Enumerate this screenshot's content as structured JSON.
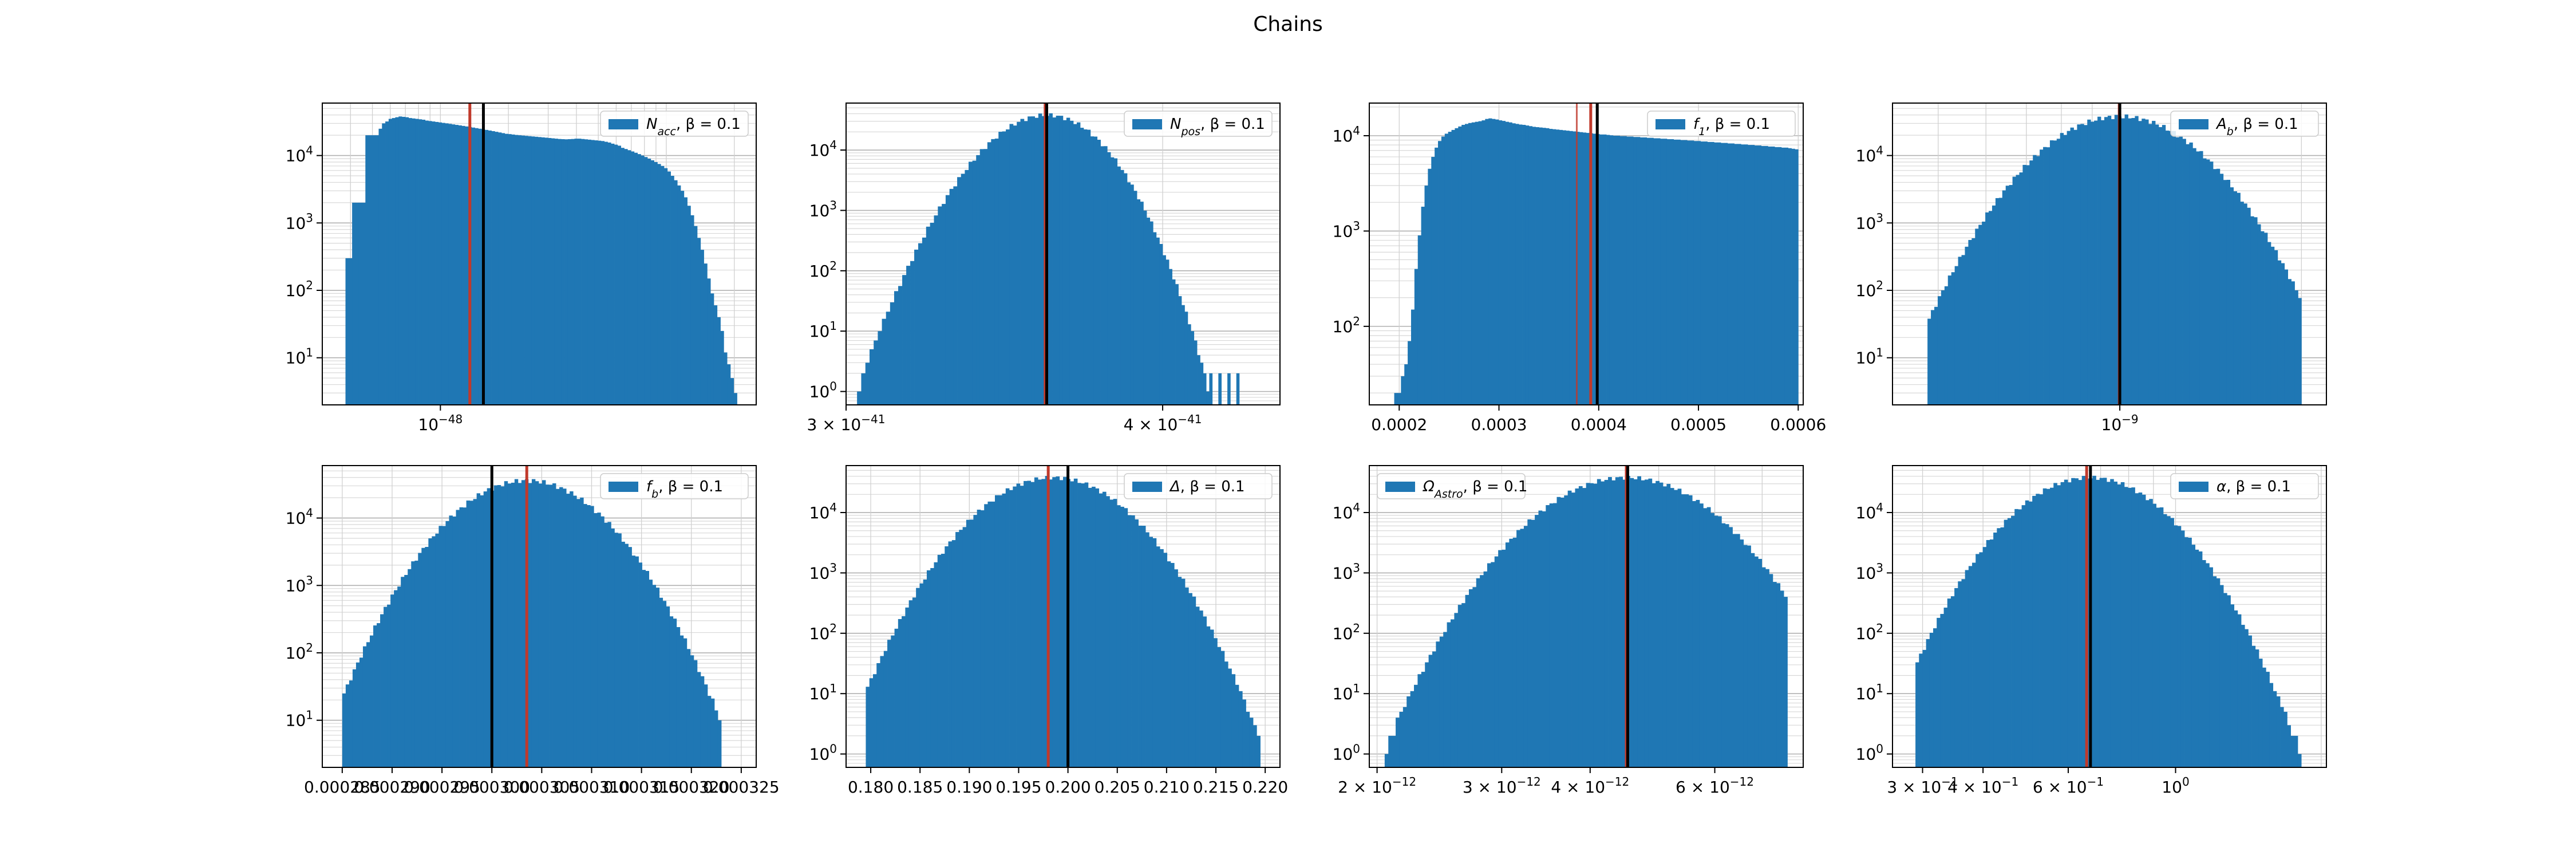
{
  "figure": {
    "title": "Chains",
    "bar_color": "#1f77b4",
    "true_line_color": "#000000",
    "est_line_color": "#c0392b"
  },
  "chart_data": [
    {
      "type": "bar",
      "xscale": "log",
      "yscale": "log",
      "grid": true,
      "legend": "upper right",
      "legend_label": "N_acc, β = 0.1",
      "legend_main": "N",
      "legend_sub": "acc",
      "legend_tail": ", β = 0.1",
      "xlim": [
        3e-49,
        2.5e-47
      ],
      "ylim": [
        2,
        60000
      ],
      "xticks": [
        {
          "value": 1e-48,
          "base": "10",
          "exp": "−48"
        }
      ],
      "yticks": [
        {
          "value": 10,
          "exp": "1"
        },
        {
          "value": 100,
          "exp": "2"
        },
        {
          "value": 1000,
          "exp": "3"
        },
        {
          "value": 10000,
          "exp": "4"
        }
      ],
      "bins": {
        "start": 3.8e-49,
        "end": 2.2e-47,
        "count": 120
      },
      "counts": [
        300,
        300,
        2000,
        2000,
        2000,
        2000,
        20000,
        20000,
        20000,
        20000,
        25000,
        30000,
        32000,
        35000,
        36000,
        37000,
        38000,
        37500,
        37000,
        36000,
        35500,
        35000,
        34500,
        34000,
        33000,
        32500,
        32000,
        31500,
        31000,
        30500,
        30000,
        29500,
        29000,
        28500,
        28000,
        27500,
        27000,
        26500,
        26000,
        25500,
        25000,
        24500,
        24000,
        23500,
        23000,
        22500,
        22000,
        21500,
        21000,
        20800,
        20500,
        20200,
        20000,
        19800,
        19600,
        19400,
        19200,
        19000,
        18800,
        18600,
        18400,
        18200,
        18000,
        17800,
        17600,
        17500,
        17400,
        17500,
        17600,
        17800,
        17800,
        17600,
        17400,
        17200,
        17000,
        16800,
        16600,
        16400,
        16000,
        15600,
        15000,
        14500,
        14000,
        13000,
        12500,
        12000,
        11500,
        11000,
        10500,
        10000,
        9500,
        9000,
        8500,
        8000,
        7500,
        7000,
        6500,
        5800,
        5000,
        4300,
        3600,
        3000,
        2400,
        1800,
        1300,
        900,
        600,
        400,
        250,
        150,
        90,
        60,
        40,
        25,
        12,
        8,
        5,
        3,
        2,
        2
      ],
      "lines": {
        "estimate": 1.35e-48,
        "true": 1.55e-48
      }
    },
    {
      "type": "bar",
      "xscale": "log",
      "yscale": "log",
      "grid": true,
      "legend": "upper right",
      "legend_label": "N_pos, β = 0.1",
      "legend_main": "N",
      "legend_sub": "pos",
      "legend_tail": ", β = 0.1",
      "xlim": [
        3e-41,
        4.45e-41
      ],
      "ylim": [
        0.6,
        60000
      ],
      "xticks": [
        {
          "value": 3e-41,
          "base": "3 × 10",
          "exp": "−41"
        },
        {
          "value": 4e-41,
          "base": "4 × 10",
          "exp": "−41"
        }
      ],
      "yticks": [
        {
          "value": 1,
          "exp": "0"
        },
        {
          "value": 10,
          "exp": "1"
        },
        {
          "value": 100,
          "exp": "2"
        },
        {
          "value": 1000,
          "exp": "3"
        },
        {
          "value": 10000,
          "exp": "4"
        }
      ],
      "gauss": {
        "center": 3.6e-41,
        "sigma": 1.25e-42,
        "peak": 38000,
        "lo": 3.03e-41,
        "hi": 4.3e-41,
        "count": 110
      },
      "lines": {
        "estimate": 3.595e-41,
        "true": 3.6e-41
      }
    },
    {
      "type": "bar",
      "xscale": "linear",
      "yscale": "log",
      "grid": true,
      "legend": "upper right",
      "legend_label": "f_1, β = 0.1",
      "legend_main": "f",
      "legend_sub": "1",
      "legend_tail": ", β = 0.1",
      "xlim": [
        0.00017,
        0.000605
      ],
      "ylim": [
        15,
        22000
      ],
      "xticks": [
        {
          "value": 0.0002,
          "text": "0.0002"
        },
        {
          "value": 0.0003,
          "text": "0.0003"
        },
        {
          "value": 0.0004,
          "text": "0.0004"
        },
        {
          "value": 0.0005,
          "text": "0.0005"
        },
        {
          "value": 0.0006,
          "text": "0.0006"
        }
      ],
      "yticks": [
        {
          "value": 100,
          "exp": "2"
        },
        {
          "value": 1000,
          "exp": "3"
        },
        {
          "value": 10000,
          "exp": "4"
        }
      ],
      "bins": {
        "start": 0.000195,
        "end": 0.0006,
        "count": 120
      },
      "counts": [
        20,
        20,
        30,
        40,
        70,
        150,
        400,
        900,
        1800,
        3000,
        4500,
        6000,
        7500,
        8800,
        9800,
        10500,
        11000,
        11500,
        12000,
        12500,
        13000,
        13300,
        13600,
        13800,
        14000,
        14200,
        14500,
        15000,
        15200,
        15000,
        14800,
        14500,
        14300,
        14000,
        13800,
        13500,
        13300,
        13100,
        13000,
        12800,
        12600,
        12400,
        12300,
        12200,
        12100,
        12000,
        11800,
        11700,
        11600,
        11500,
        11400,
        11300,
        11200,
        11100,
        11000,
        10900,
        10800,
        10700,
        10600,
        10500,
        10400,
        10300,
        10300,
        10200,
        10100,
        10000,
        10000,
        9900,
        9900,
        9800,
        9800,
        9700,
        9700,
        9600,
        9600,
        9500,
        9500,
        9400,
        9400,
        9300,
        9300,
        9200,
        9200,
        9100,
        9100,
        9000,
        9000,
        8900,
        8900,
        8800,
        8800,
        8700,
        8700,
        8600,
        8600,
        8500,
        8500,
        8400,
        8400,
        8300,
        8300,
        8200,
        8200,
        8100,
        8100,
        8000,
        8000,
        7900,
        7900,
        7800,
        7800,
        7700,
        7700,
        7600,
        7600,
        7500,
        7500,
        7400,
        7300,
        7200
      ],
      "lines": {
        "estimate": 0.000392,
        "true": 0.0003985,
        "estimate2": 0.000378
      }
    },
    {
      "type": "bar",
      "xscale": "log",
      "yscale": "log",
      "grid": true,
      "legend": "upper right",
      "legend_label": "A_b, β = 0.1",
      "legend_main": "A",
      "legend_sub": "b",
      "legend_tail": ", β = 0.1",
      "xlim": [
        4.2e-10,
        2.2e-09
      ],
      "ylim": [
        2,
        60000
      ],
      "xticks": [
        {
          "value": 1e-09,
          "base": "10",
          "exp": "−9"
        }
      ],
      "yticks": [
        {
          "value": 10,
          "exp": "1"
        },
        {
          "value": 100,
          "exp": "2"
        },
        {
          "value": 1000,
          "exp": "3"
        },
        {
          "value": 10000,
          "exp": "4"
        }
      ],
      "gauss": {
        "center": 1e-09,
        "sigma": 0.085,
        "log_sigma": true,
        "peak": 38000,
        "lo": 4.8e-10,
        "hi": 2e-09,
        "count": 110
      },
      "lines": {
        "estimate": 9.98e-10,
        "true": 1e-09
      }
    },
    {
      "type": "bar",
      "xscale": "linear",
      "yscale": "log",
      "grid": true,
      "legend": "upper right",
      "legend_label": "f_b, β = 0.1",
      "legend_main": "f",
      "legend_sub": "b",
      "legend_tail": ", β = 0.1",
      "xlim": [
        0.000283,
        0.0003265
      ],
      "ylim": [
        2,
        60000
      ],
      "xticks": [
        {
          "value": 0.000285,
          "text": "0.000285"
        },
        {
          "value": 0.00029,
          "text": "0.000290"
        },
        {
          "value": 0.000295,
          "text": "0.000295"
        },
        {
          "value": 0.0003,
          "text": "0.000300"
        },
        {
          "value": 0.000305,
          "text": "0.000305"
        },
        {
          "value": 0.00031,
          "text": "0.000310"
        },
        {
          "value": 0.000315,
          "text": "0.000315"
        },
        {
          "value": 0.00032,
          "text": "0.000320"
        },
        {
          "value": 0.000325,
          "text": "0.000325"
        }
      ],
      "yticks": [
        {
          "value": 10,
          "exp": "1"
        },
        {
          "value": 100,
          "exp": "2"
        },
        {
          "value": 1000,
          "exp": "3"
        },
        {
          "value": 10000,
          "exp": "4"
        }
      ],
      "gauss": {
        "center": 0.0003035,
        "sigma": 4.8e-06,
        "peak": 36000,
        "lo": 0.000285,
        "hi": 0.000323,
        "count": 110
      },
      "lines": {
        "true": 0.0003,
        "estimate": 0.0003035
      }
    },
    {
      "type": "bar",
      "xscale": "linear",
      "yscale": "log",
      "grid": true,
      "legend": "upper right",
      "legend_label": "Δ, β = 0.1",
      "legend_main": "Δ",
      "legend_sub": "",
      "legend_tail": ", β = 0.1",
      "xlim": [
        0.1775,
        0.2215
      ],
      "ylim": [
        0.6,
        60000
      ],
      "xticks": [
        {
          "value": 0.18,
          "text": "0.180"
        },
        {
          "value": 0.185,
          "text": "0.185"
        },
        {
          "value": 0.19,
          "text": "0.190"
        },
        {
          "value": 0.195,
          "text": "0.195"
        },
        {
          "value": 0.2,
          "text": "0.200"
        },
        {
          "value": 0.205,
          "text": "0.205"
        },
        {
          "value": 0.21,
          "text": "0.210"
        },
        {
          "value": 0.215,
          "text": "0.215"
        },
        {
          "value": 0.22,
          "text": "0.220"
        }
      ],
      "yticks": [
        {
          "value": 1,
          "exp": "0"
        },
        {
          "value": 10,
          "exp": "1"
        },
        {
          "value": 100,
          "exp": "2"
        },
        {
          "value": 1000,
          "exp": "3"
        },
        {
          "value": 10000,
          "exp": "4"
        }
      ],
      "gauss": {
        "center": 0.1985,
        "sigma": 0.0047,
        "peak": 38000,
        "lo": 0.1795,
        "hi": 0.2195,
        "count": 110
      },
      "lines": {
        "estimate": 0.198,
        "true": 0.2
      }
    },
    {
      "type": "bar",
      "xscale": "log",
      "yscale": "log",
      "grid": true,
      "legend": "upper left",
      "legend_label": "Ω_Astro, β = 0.1",
      "legend_main": "Ω",
      "legend_sub": "Astro",
      "legend_tail": ", β = 0.1",
      "xlim": [
        1.95e-12,
        8e-12
      ],
      "ylim": [
        0.6,
        60000
      ],
      "xticks": [
        {
          "value": 2e-12,
          "base": "2 × 10",
          "exp": "−12"
        },
        {
          "value": 3e-12,
          "base": "3 × 10",
          "exp": "−12"
        },
        {
          "value": 4e-12,
          "base": "4 × 10",
          "exp": "−12"
        },
        {
          "value": 6e-12,
          "base": "6 × 10",
          "exp": "−12"
        }
      ],
      "yticks": [
        {
          "value": 1,
          "exp": "0"
        },
        {
          "value": 10,
          "exp": "1"
        },
        {
          "value": 100,
          "exp": "2"
        },
        {
          "value": 1000,
          "exp": "3"
        },
        {
          "value": 10000,
          "exp": "4"
        }
      ],
      "gauss": {
        "center": 4.5e-12,
        "sigma": 0.075,
        "log_sigma": true,
        "peak": 38000,
        "lo": 2.05e-12,
        "hi": 7.6e-12,
        "count": 110
      },
      "lines": {
        "estimate": 4.5e-12,
        "true": 4.52e-12
      }
    },
    {
      "type": "bar",
      "xscale": "log",
      "yscale": "log",
      "grid": true,
      "legend": "upper right",
      "legend_label": "α, β = 0.1",
      "legend_main": "α",
      "legend_sub": "",
      "legend_tail": ", β = 0.1",
      "xlim": [
        0.26,
        2.05
      ],
      "ylim": [
        0.6,
        60000
      ],
      "xticks": [
        {
          "value": 0.3,
          "base": "3 × 10",
          "exp": "−1"
        },
        {
          "value": 0.4,
          "base": "4 × 10",
          "exp": "−1"
        },
        {
          "value": 0.6,
          "base": "6 × 10",
          "exp": "−1"
        },
        {
          "value": 1,
          "base": "10",
          "exp": "0"
        }
      ],
      "yticks": [
        {
          "value": 1,
          "exp": "0"
        },
        {
          "value": 10,
          "exp": "1"
        },
        {
          "value": 100,
          "exp": "2"
        },
        {
          "value": 1000,
          "exp": "3"
        },
        {
          "value": 10000,
          "exp": "4"
        }
      ],
      "gauss": {
        "center": 0.665,
        "sigma": 0.095,
        "log_sigma": true,
        "peak": 38000,
        "lo": 0.29,
        "hi": 1.85,
        "count": 110
      },
      "lines": {
        "estimate": 0.655,
        "true": 0.667
      }
    }
  ]
}
